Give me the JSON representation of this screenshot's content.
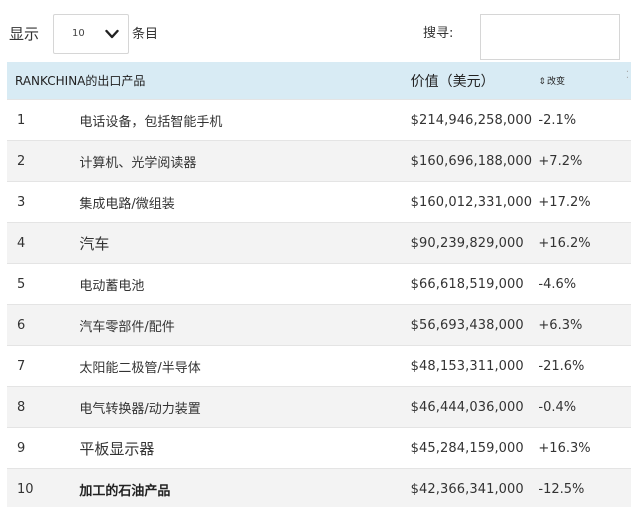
{
  "controls": {
    "show_label": "显示",
    "length_value": "10",
    "entries_label": "条目",
    "search_label": "搜寻:",
    "search_value": ""
  },
  "table": {
    "headers": {
      "name": "RANKCHINA的出口产品",
      "value": "价值（美元）",
      "change": "改变"
    },
    "rows": [
      {
        "rank": "1",
        "name": "电话设备，包括智能手机",
        "value": "$214,946,258,000",
        "change": "-2.1%"
      },
      {
        "rank": "2",
        "name": "计算机、光学阅读器",
        "value": "$160,696,188,000",
        "change": "+7.2%"
      },
      {
        "rank": "3",
        "name": "集成电路/微组装",
        "value": "$160,012,331,000",
        "change": "+17.2%"
      },
      {
        "rank": "4",
        "name": "汽车",
        "value": "$90,239,829,000",
        "change": "+16.2%"
      },
      {
        "rank": "5",
        "name": "电动蓄电池",
        "value": "$66,618,519,000",
        "change": "-4.6%"
      },
      {
        "rank": "6",
        "name": "汽车零部件/配件",
        "value": "$56,693,438,000",
        "change": "+6.3%"
      },
      {
        "rank": "7",
        "name": "太阳能二极管/半导体",
        "value": "$48,153,311,000",
        "change": "-21.6%"
      },
      {
        "rank": "8",
        "name": "电气转换器/动力装置",
        "value": "$46,444,036,000",
        "change": "-0.4%"
      },
      {
        "rank": "9",
        "name": "平板显示器",
        "value": "$45,284,159,000",
        "change": "+16.3%"
      },
      {
        "rank": "10",
        "name": "加工的石油产品",
        "value": "$42,366,341,000",
        "change": "-12.5%"
      }
    ]
  },
  "colors": {
    "header_bg": "#d8ebf4",
    "row_alt_bg": "#f3f3f3"
  },
  "icons": [
    "chevron-down-icon",
    "sort-icon",
    "column-menu-icon"
  ]
}
